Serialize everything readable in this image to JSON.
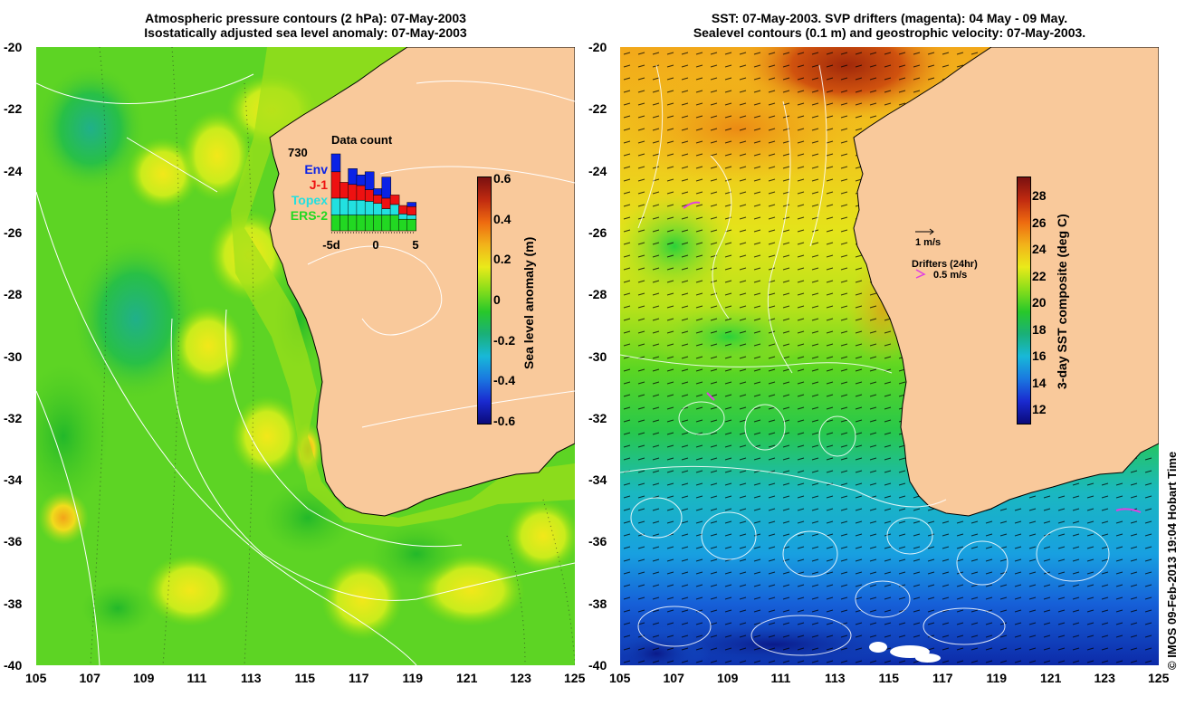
{
  "left_panel": {
    "title_line1": "Atmospheric pressure contours (2 hPa): 07-May-2003",
    "title_line2": "Isostatically adjusted sea level anomaly: 07-May-2003",
    "y_ticks": [
      "-20",
      "-22",
      "-24",
      "-26",
      "-28",
      "-30",
      "-32",
      "-34",
      "-36",
      "-38",
      "-40"
    ],
    "x_ticks": [
      "105",
      "107",
      "109",
      "111",
      "113",
      "115",
      "117",
      "119",
      "121",
      "123",
      "125"
    ],
    "colorbar": {
      "label": "Sea level anomaly (m)",
      "ticks": [
        "0.6",
        "0.4",
        "0.2",
        "0",
        "-0.2",
        "-0.4",
        "-0.6"
      ],
      "range": [
        -0.6,
        0.6
      ]
    },
    "data_count": {
      "title": "Data count",
      "max": "730",
      "legend": [
        {
          "name": "Env",
          "color": "#0a22e6"
        },
        {
          "name": "J-1",
          "color": "#ee1111"
        },
        {
          "name": "Topex",
          "color": "#22e0e0"
        },
        {
          "name": "ERS-2",
          "color": "#22d822"
        }
      ],
      "x_ticks": [
        "-5d",
        "0",
        "5"
      ],
      "bars": [
        {
          "day": -5,
          "ers2": 150,
          "topex": 160,
          "j1": 250,
          "env": 170
        },
        {
          "day": -4,
          "ers2": 150,
          "topex": 160,
          "j1": 150,
          "env": 0
        },
        {
          "day": -3,
          "ers2": 150,
          "topex": 140,
          "j1": 150,
          "env": 150
        },
        {
          "day": -2,
          "ers2": 150,
          "topex": 140,
          "j1": 140,
          "env": 100
        },
        {
          "day": -1,
          "ers2": 150,
          "topex": 130,
          "j1": 110,
          "env": 170
        },
        {
          "day": 0,
          "ers2": 150,
          "topex": 110,
          "j1": 80,
          "env": 60
        },
        {
          "day": 1,
          "ers2": 150,
          "topex": 60,
          "j1": 100,
          "env": 200
        },
        {
          "day": 2,
          "ers2": 150,
          "topex": 100,
          "j1": 90,
          "env": 0
        },
        {
          "day": 3,
          "ers2": 110,
          "topex": 50,
          "j1": 80,
          "env": 0
        },
        {
          "day": 4,
          "ers2": 110,
          "topex": 40,
          "j1": 80,
          "env": 40
        }
      ]
    }
  },
  "right_panel": {
    "title_line1": "SST: 07-May-2003. SVP drifters (magenta): 04 May - 09 May.",
    "title_line2": "Sealevel contours (0.1 m) and geostrophic velocity: 07-May-2003.",
    "y_ticks": [
      "-20",
      "-22",
      "-24",
      "-26",
      "-28",
      "-30",
      "-32",
      "-34",
      "-36",
      "-38",
      "-40"
    ],
    "x_ticks": [
      "105",
      "107",
      "109",
      "111",
      "113",
      "115",
      "117",
      "119",
      "121",
      "123",
      "125"
    ],
    "colorbar": {
      "label": "3-day SST composite (deg C)",
      "ticks": [
        "28",
        "26",
        "24",
        "22",
        "20",
        "18",
        "16",
        "14",
        "12"
      ],
      "range": [
        10.5,
        29.5
      ]
    },
    "velocity_scale_label": "1 m/s",
    "drifters_label": "Drifters (24hr)",
    "drifter_scale_label": "0.5 m/s"
  },
  "credit": "© IMOS 09-Feb-2013 19:04 Hobart Time",
  "colors": {
    "land": "#f9c99b",
    "coast": "#000000",
    "contour": "#ffffff",
    "drifter": "#e040e0"
  }
}
